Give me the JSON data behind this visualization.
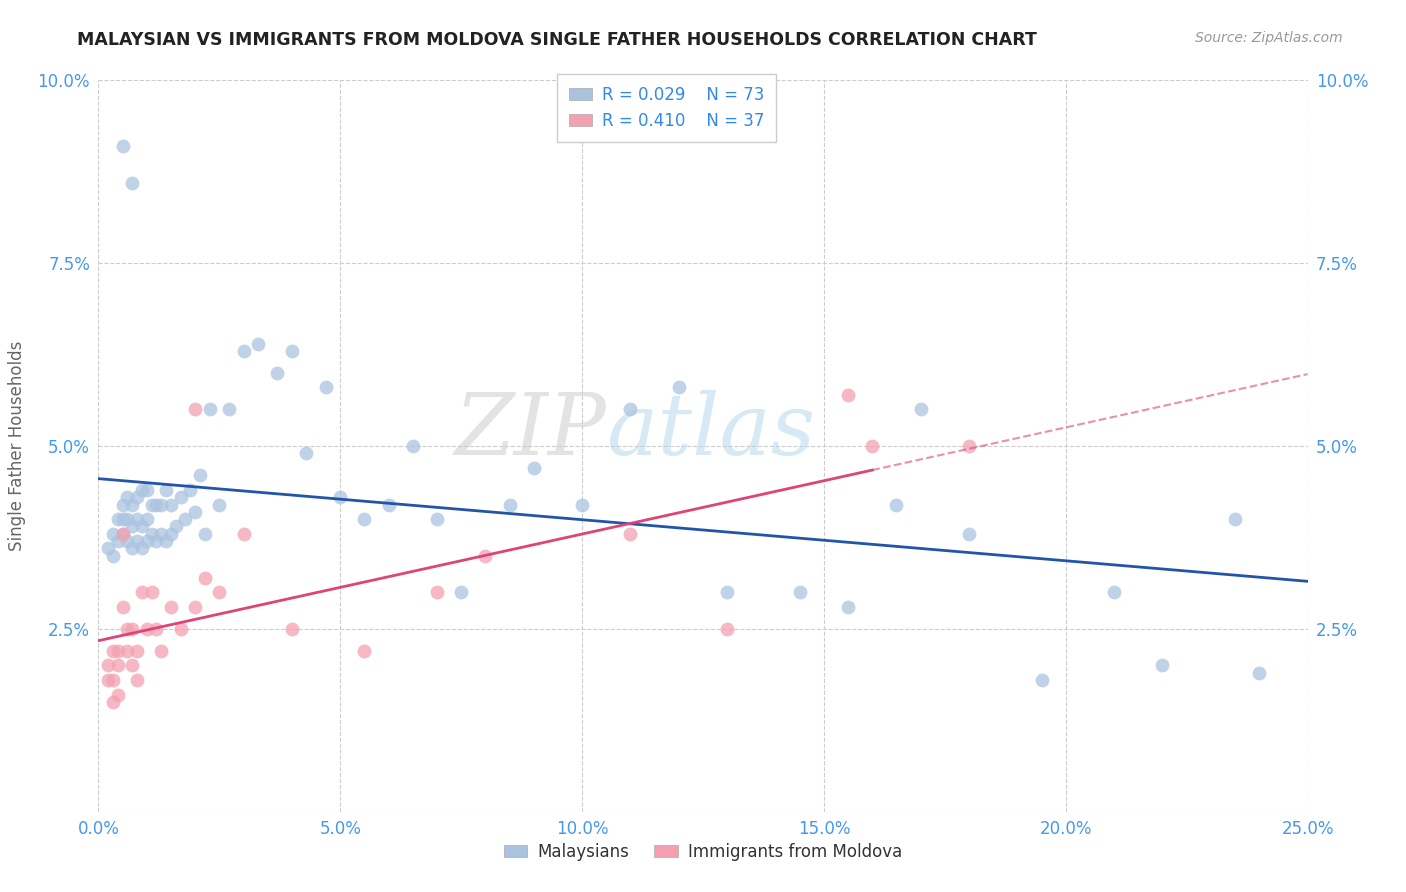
{
  "title": "MALAYSIAN VS IMMIGRANTS FROM MOLDOVA SINGLE FATHER HOUSEHOLDS CORRELATION CHART",
  "source": "Source: ZipAtlas.com",
  "ylabel": "Single Father Households",
  "xlim": [
    0,
    0.25
  ],
  "ylim": [
    0,
    0.1
  ],
  "xticks": [
    0.0,
    0.05,
    0.1,
    0.15,
    0.2,
    0.25
  ],
  "yticks": [
    0.0,
    0.025,
    0.05,
    0.075,
    0.1
  ],
  "xticklabels": [
    "0.0%",
    "5.0%",
    "10.0%",
    "15.0%",
    "20.0%",
    "25.0%"
  ],
  "yticklabels": [
    "",
    "2.5%",
    "5.0%",
    "7.5%",
    "10.0%"
  ],
  "legend_r1": "R = 0.029",
  "legend_n1": "N = 73",
  "legend_r2": "R = 0.410",
  "legend_n2": "N = 37",
  "legend_label1": "Malaysians",
  "legend_label2": "Immigrants from Moldova",
  "color_blue": "#aac4e0",
  "color_pink": "#f4a0b0",
  "line_color_blue": "#2255aa",
  "line_color_pink": "#dd4477",
  "watermark_zip": "ZIP",
  "watermark_atlas": "atlas",
  "malaysians_x": [
    0.002,
    0.003,
    0.003,
    0.004,
    0.004,
    0.005,
    0.005,
    0.005,
    0.006,
    0.006,
    0.006,
    0.007,
    0.007,
    0.007,
    0.008,
    0.008,
    0.008,
    0.009,
    0.009,
    0.009,
    0.01,
    0.01,
    0.01,
    0.011,
    0.011,
    0.012,
    0.012,
    0.013,
    0.013,
    0.014,
    0.014,
    0.015,
    0.015,
    0.016,
    0.017,
    0.018,
    0.019,
    0.02,
    0.021,
    0.022,
    0.023,
    0.025,
    0.027,
    0.03,
    0.033,
    0.037,
    0.04,
    0.043,
    0.047,
    0.05,
    0.055,
    0.06,
    0.065,
    0.07,
    0.075,
    0.085,
    0.09,
    0.1,
    0.11,
    0.12,
    0.13,
    0.145,
    0.155,
    0.165,
    0.17,
    0.18,
    0.195,
    0.21,
    0.22,
    0.235,
    0.24,
    0.005,
    0.007
  ],
  "malaysians_y": [
    0.036,
    0.038,
    0.035,
    0.037,
    0.04,
    0.038,
    0.04,
    0.042,
    0.037,
    0.04,
    0.043,
    0.036,
    0.039,
    0.042,
    0.037,
    0.04,
    0.043,
    0.036,
    0.039,
    0.044,
    0.037,
    0.04,
    0.044,
    0.038,
    0.042,
    0.037,
    0.042,
    0.038,
    0.042,
    0.037,
    0.044,
    0.038,
    0.042,
    0.039,
    0.043,
    0.04,
    0.044,
    0.041,
    0.046,
    0.038,
    0.055,
    0.042,
    0.055,
    0.063,
    0.064,
    0.06,
    0.063,
    0.049,
    0.058,
    0.043,
    0.04,
    0.042,
    0.05,
    0.04,
    0.03,
    0.042,
    0.047,
    0.042,
    0.055,
    0.058,
    0.03,
    0.03,
    0.028,
    0.042,
    0.055,
    0.038,
    0.018,
    0.03,
    0.02,
    0.04,
    0.019,
    0.091,
    0.086
  ],
  "moldova_x": [
    0.002,
    0.002,
    0.003,
    0.003,
    0.003,
    0.004,
    0.004,
    0.004,
    0.005,
    0.005,
    0.006,
    0.006,
    0.007,
    0.007,
    0.008,
    0.008,
    0.009,
    0.01,
    0.011,
    0.012,
    0.013,
    0.015,
    0.017,
    0.02,
    0.022,
    0.025,
    0.03,
    0.04,
    0.055,
    0.07,
    0.08,
    0.11,
    0.13,
    0.155,
    0.16,
    0.18,
    0.02
  ],
  "moldova_y": [
    0.02,
    0.018,
    0.022,
    0.018,
    0.015,
    0.022,
    0.02,
    0.016,
    0.038,
    0.028,
    0.025,
    0.022,
    0.02,
    0.025,
    0.018,
    0.022,
    0.03,
    0.025,
    0.03,
    0.025,
    0.022,
    0.028,
    0.025,
    0.028,
    0.032,
    0.03,
    0.038,
    0.025,
    0.022,
    0.03,
    0.035,
    0.038,
    0.025,
    0.057,
    0.05,
    0.05,
    0.055
  ]
}
